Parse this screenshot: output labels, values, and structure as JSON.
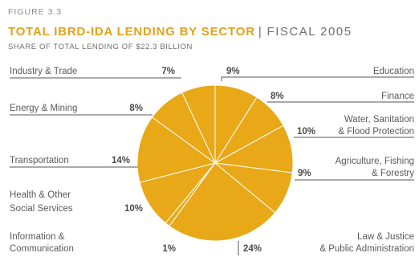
{
  "header": {
    "figure_label": "FIGURE 3.3",
    "title": "TOTAL IBRD-IDA LENDING BY SECTOR",
    "separator": "|",
    "fiscal_year": "FISCAL 2005",
    "subtitle": "SHARE OF TOTAL LENDING OF $22.3 BILLION"
  },
  "colors": {
    "slice": "#e8a817",
    "slice_edge": "#ffffff",
    "title": "#e0a21a",
    "leader": "#555555"
  },
  "chart_data": {
    "type": "pie",
    "title": "TOTAL IBRD-IDA LENDING BY SECTOR",
    "subtitle": "SHARE OF TOTAL LENDING OF $22.3 BILLION",
    "unit": "%",
    "slices": [
      {
        "label": "Education",
        "value": 9,
        "display": "9%"
      },
      {
        "label": "Finance",
        "value": 8,
        "display": "8%"
      },
      {
        "label": "Water, Sanitation & Flood Protection",
        "value": 10,
        "display": "10%"
      },
      {
        "label": "Agriculture, Fishing & Forestry",
        "value": 9,
        "display": "9%"
      },
      {
        "label": "Law & Justice & Public Administration",
        "value": 24,
        "display": "24%"
      },
      {
        "label": "Information & Communication",
        "value": 1,
        "display": "1%"
      },
      {
        "label": "Health & Other Social Services",
        "value": 10,
        "display": "10%"
      },
      {
        "label": "Transportation",
        "value": 14,
        "display": "14%"
      },
      {
        "label": "Energy & Mining",
        "value": 8,
        "display": "8%"
      },
      {
        "label": "Industry & Trade",
        "value": 7,
        "display": "7%"
      }
    ]
  }
}
